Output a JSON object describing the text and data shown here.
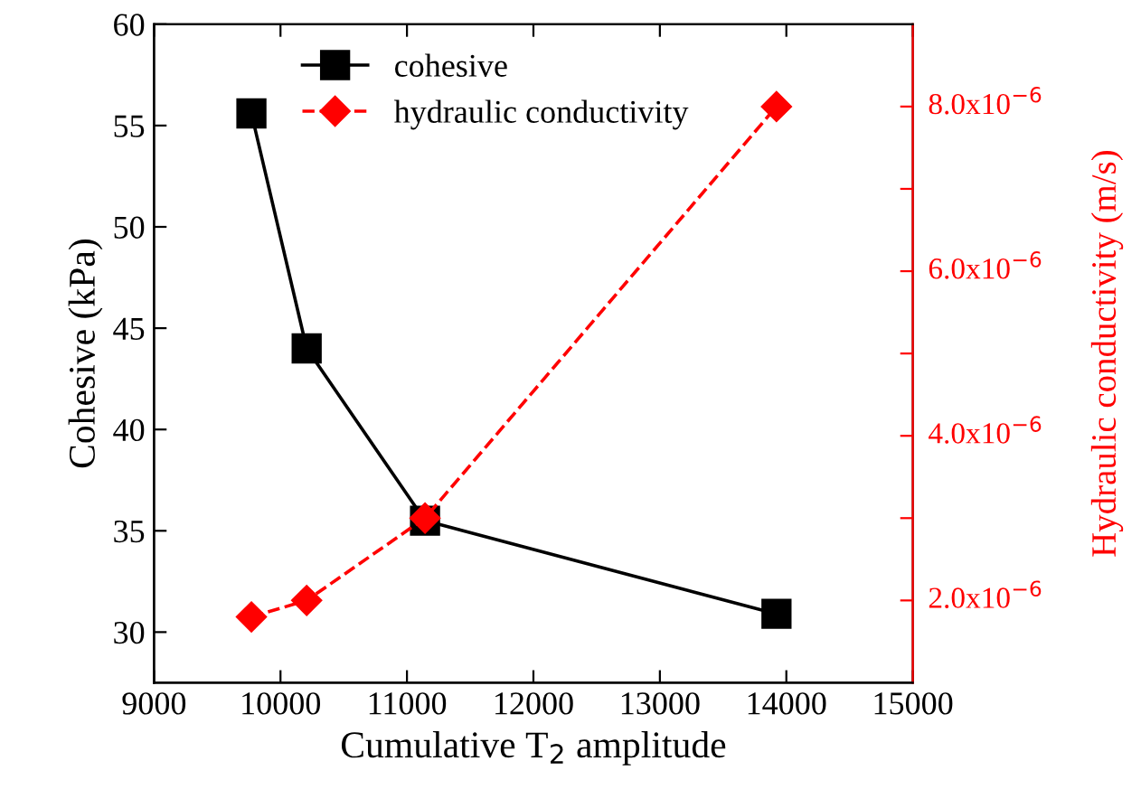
{
  "chart_data": {
    "type": "line",
    "xlabel": "Cumulative T$_{2}$ amplitude",
    "ylabel": "Cohesive (kPa)",
    "y2label": "Hydraulic conductivity (m/s)",
    "xlim": [
      9000,
      15000
    ],
    "xticks": [
      9000,
      10000,
      11000,
      12000,
      13000,
      14000,
      15000
    ],
    "ylim": [
      27.5,
      60
    ],
    "yticks": [
      30,
      35,
      40,
      45,
      50,
      55,
      60
    ],
    "y2lim": [
      1e-06,
      9e-06
    ],
    "y2ticks": [
      {
        "value": 2e-06,
        "label": "2.0x10$^{−6}$"
      },
      {
        "value": 3e-06,
        "label": null
      },
      {
        "value": 4e-06,
        "label": "4.0x10$^{−6}$"
      },
      {
        "value": 5e-06,
        "label": null
      },
      {
        "value": 6e-06,
        "label": "6.0x10$^{−6}$"
      },
      {
        "value": 7e-06,
        "label": null
      },
      {
        "value": 8e-06,
        "label": "8.0x10$^{−6}$"
      }
    ],
    "legend": "top",
    "series": [
      {
        "name": "cohesive",
        "color": "#000000",
        "marker": "square",
        "line_style": "solid",
        "x": [
          9770,
          10207,
          11143,
          13922
        ],
        "values": [
          55.6,
          44.0,
          35.5,
          30.9
        ]
      },
      {
        "name": "hydraulic conductivity",
        "color": "#ff0000",
        "marker": "diamond",
        "line_style": "dashed",
        "axis": "y2",
        "x": [
          9770,
          10207,
          11143,
          13922
        ],
        "values": [
          1.8e-06,
          2e-06,
          3e-06,
          8e-06
        ]
      }
    ]
  }
}
